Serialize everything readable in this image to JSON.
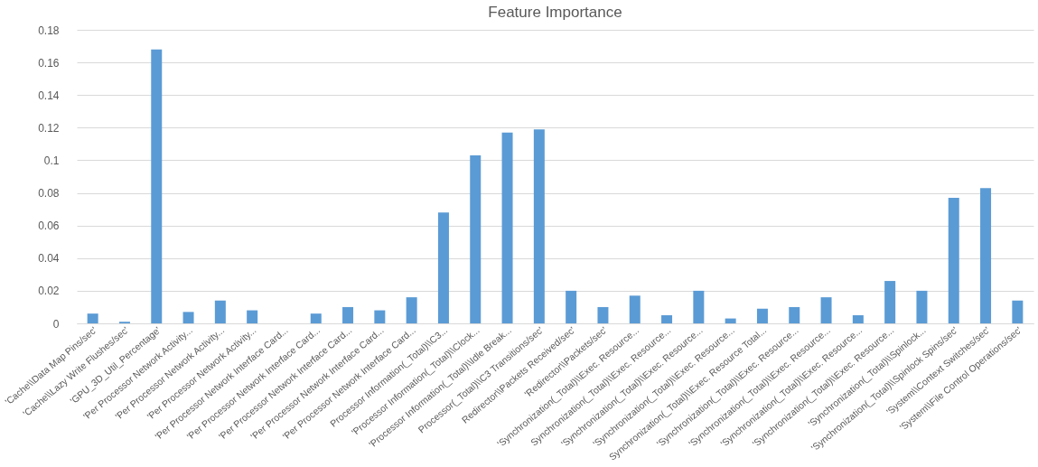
{
  "chart_data": {
    "type": "bar",
    "title": "Feature Importance",
    "categories": [
      "'Cache\\\\Data Map Pins/sec'",
      "'Cache\\\\Lazy Write Flushes/sec'",
      "'GPU_3D_Util_Percentage'",
      "'Per Processor Network Activity...",
      "'Per Processor Network Activity...",
      "'Per Processor Network Activity...",
      "'Per Processor Network Interface Card...",
      "'Per Processor Network Interface Card...",
      "'Per Processor Network Interface Card...",
      "'Per Processor Network Interface Card...",
      "'Per Processor Network Interface Card...",
      "Processor Information(_Total)\\\\C3...",
      "'Processor Information(_Total)\\\\Clock...",
      "'Processor Information(_Total)\\\\Idle Break...",
      "Processor(_Total)\\\\C3 Transitions/sec'",
      "Redirector\\\\Packets Received/sec'",
      "'Redirector\\\\Packets/sec'",
      "'Synchronization(_Total)\\\\Exec. Resource...",
      "Synchronization(_Total)\\\\Exec. Resource...",
      "'Synchronization(_Total)\\\\Exec. Resource...",
      "'Synchronization(_Total)\\\\Exec. Resource...",
      "Synchronization(_Total)\\\\Exec. Resource Total...",
      "'Synchronization(_Total)\\\\Exec. Resource...",
      "'Synchronization(_Total)\\\\Exec. Resource...",
      "'Synchronization(_Total)\\\\Exec. Resource...",
      "'Synchronization(_Total)\\\\Exec. Resource...",
      "'Synchronization(_Total)\\\\Spinlock...",
      "'Synchronization(_Total)\\\\Spinlock Spins/sec'",
      "'System\\\\Context Switches/sec'",
      "'System\\\\File Control Operations/sec'"
    ],
    "values": [
      0.006,
      0.001,
      0.168,
      0.007,
      0.014,
      0.008,
      0,
      0.006,
      0.01,
      0.008,
      0.016,
      0.068,
      0.103,
      0.117,
      0.119,
      0.02,
      0.01,
      0.017,
      0.005,
      0.02,
      0.003,
      0.009,
      0.01,
      0.016,
      0.005,
      0.026,
      0.02,
      0.077,
      0.083,
      0.014
    ],
    "color": "#5b9bd5",
    "ylim": [
      0,
      0.18
    ],
    "yticks": [
      0,
      0.02,
      0.04,
      0.06,
      0.08,
      0.1,
      0.12,
      0.14,
      0.16,
      0.18
    ],
    "grid": "y"
  }
}
